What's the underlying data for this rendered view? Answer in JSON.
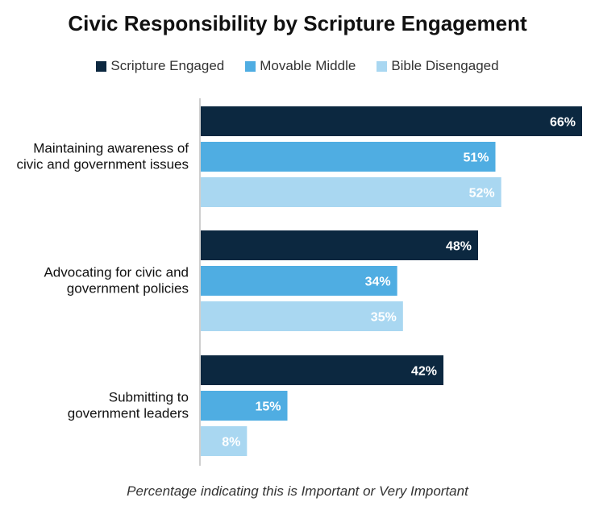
{
  "chart_data": {
    "type": "bar",
    "orientation": "horizontal",
    "title": "Civic Responsibility by Scripture Engagement",
    "categories": [
      "Maintaining awareness of civic and government issues",
      "Advocating for civic and government policies",
      "Submitting to government leaders"
    ],
    "category_lines": [
      [
        "Maintaining awareness of",
        "civic and government issues"
      ],
      [
        "Advocating for civic and",
        "government policies"
      ],
      [
        "Submitting to",
        "government leaders"
      ]
    ],
    "series": [
      {
        "name": "Scripture Engaged",
        "color": "#0c2840",
        "values": [
          66,
          48,
          42
        ],
        "labels": [
          "66%",
          "48%",
          "42%"
        ]
      },
      {
        "name": "Movable Middle",
        "color": "#4fade2",
        "values": [
          51,
          34,
          15
        ],
        "labels": [
          "51%",
          "34%",
          "15%"
        ]
      },
      {
        "name": "Bible Disengaged",
        "color": "#a9d7f1",
        "values": [
          52,
          35,
          8
        ],
        "labels": [
          "52%",
          "35%",
          "8%"
        ]
      }
    ],
    "xlim": [
      0,
      66
    ],
    "grid": false,
    "legend_position": "top",
    "footnote": "Percentage indicating this is Important or Very Important"
  }
}
